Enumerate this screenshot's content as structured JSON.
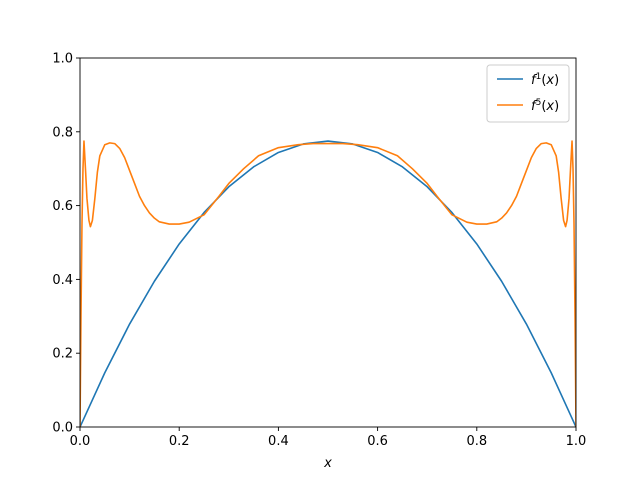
{
  "chart_data": {
    "type": "line",
    "xlabel": "x",
    "ylabel": "",
    "xlim": [
      0,
      1
    ],
    "ylim": [
      0,
      1
    ],
    "xticks": [
      "0.0",
      "0.2",
      "0.4",
      "0.6",
      "0.8",
      "1.0"
    ],
    "yticks": [
      "0.0",
      "0.2",
      "0.4",
      "0.6",
      "0.8",
      "1.0"
    ],
    "grid": false,
    "legend_position": "top-right",
    "series": [
      {
        "name": "f¹(x)",
        "legend_base": "f",
        "legend_sup": "1",
        "legend_tail": "(x)",
        "color": "#1f77b4",
        "x": [
          0.0,
          0.05,
          0.1,
          0.15,
          0.2,
          0.25,
          0.3,
          0.35,
          0.4,
          0.45,
          0.5,
          0.55,
          0.6,
          0.65,
          0.7,
          0.75,
          0.8,
          0.85,
          0.9,
          0.95,
          1.0
        ],
        "y": [
          0.0,
          0.147,
          0.279,
          0.395,
          0.496,
          0.581,
          0.651,
          0.705,
          0.744,
          0.767,
          0.775,
          0.767,
          0.744,
          0.705,
          0.651,
          0.581,
          0.496,
          0.395,
          0.279,
          0.147,
          0.0
        ]
      },
      {
        "name": "f⁵(x)",
        "legend_base": "f",
        "legend_sup": "5",
        "legend_tail": "(x)",
        "color": "#ff7f0e",
        "x": [
          0.0,
          0.002,
          0.004,
          0.006,
          0.008,
          0.011,
          0.014,
          0.018,
          0.021,
          0.025,
          0.03,
          0.035,
          0.04,
          0.05,
          0.06,
          0.07,
          0.08,
          0.09,
          0.1,
          0.11,
          0.12,
          0.13,
          0.14,
          0.15,
          0.16,
          0.18,
          0.2,
          0.22,
          0.25,
          0.28,
          0.3,
          0.33,
          0.36,
          0.4,
          0.44,
          0.47,
          0.5,
          0.53,
          0.56,
          0.6,
          0.64,
          0.67,
          0.7,
          0.72,
          0.75,
          0.78,
          0.8,
          0.82,
          0.84,
          0.85,
          0.86,
          0.87,
          0.88,
          0.89,
          0.9,
          0.91,
          0.92,
          0.93,
          0.94,
          0.95,
          0.96,
          0.965,
          0.97,
          0.975,
          0.979,
          0.982,
          0.986,
          0.989,
          0.992,
          0.994,
          0.996,
          0.998,
          1.0
        ],
        "y": [
          0.0,
          0.3,
          0.55,
          0.7,
          0.775,
          0.7,
          0.62,
          0.56,
          0.543,
          0.56,
          0.62,
          0.69,
          0.735,
          0.765,
          0.77,
          0.768,
          0.755,
          0.73,
          0.695,
          0.66,
          0.625,
          0.6,
          0.58,
          0.566,
          0.556,
          0.55,
          0.55,
          0.555,
          0.575,
          0.625,
          0.66,
          0.7,
          0.735,
          0.757,
          0.765,
          0.768,
          0.768,
          0.768,
          0.765,
          0.757,
          0.735,
          0.7,
          0.66,
          0.625,
          0.575,
          0.555,
          0.55,
          0.55,
          0.556,
          0.566,
          0.58,
          0.6,
          0.625,
          0.66,
          0.695,
          0.73,
          0.755,
          0.768,
          0.77,
          0.765,
          0.735,
          0.69,
          0.62,
          0.56,
          0.543,
          0.56,
          0.62,
          0.7,
          0.775,
          0.7,
          0.55,
          0.3,
          0.0
        ]
      }
    ]
  }
}
